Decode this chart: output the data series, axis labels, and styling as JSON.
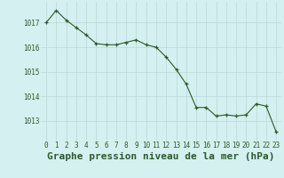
{
  "hours": [
    0,
    1,
    2,
    3,
    4,
    5,
    6,
    7,
    8,
    9,
    10,
    11,
    12,
    13,
    14,
    15,
    16,
    17,
    18,
    19,
    20,
    21,
    22,
    23
  ],
  "pressure": [
    1017.0,
    1017.5,
    1017.1,
    1016.8,
    1016.5,
    1016.15,
    1016.1,
    1016.1,
    1016.2,
    1016.3,
    1016.1,
    1016.0,
    1015.6,
    1015.1,
    1014.5,
    1013.55,
    1013.55,
    1013.2,
    1013.25,
    1013.2,
    1013.25,
    1013.7,
    1013.6,
    1012.55
  ],
  "line_color": "#2d5a27",
  "marker": "+",
  "marker_size": 3,
  "bg_color": "#d4f0f0",
  "grid_color": "#b8d8d8",
  "title": "Graphe pression niveau de la mer (hPa)",
  "title_fontsize": 8,
  "title_color": "#2d5a27",
  "ylabel_ticks": [
    1013,
    1014,
    1015,
    1016,
    1017
  ],
  "ylim": [
    1012.2,
    1017.85
  ],
  "xlim": [
    -0.5,
    23.5
  ],
  "xtick_fontsize": 5.5,
  "ytick_fontsize": 5.5
}
